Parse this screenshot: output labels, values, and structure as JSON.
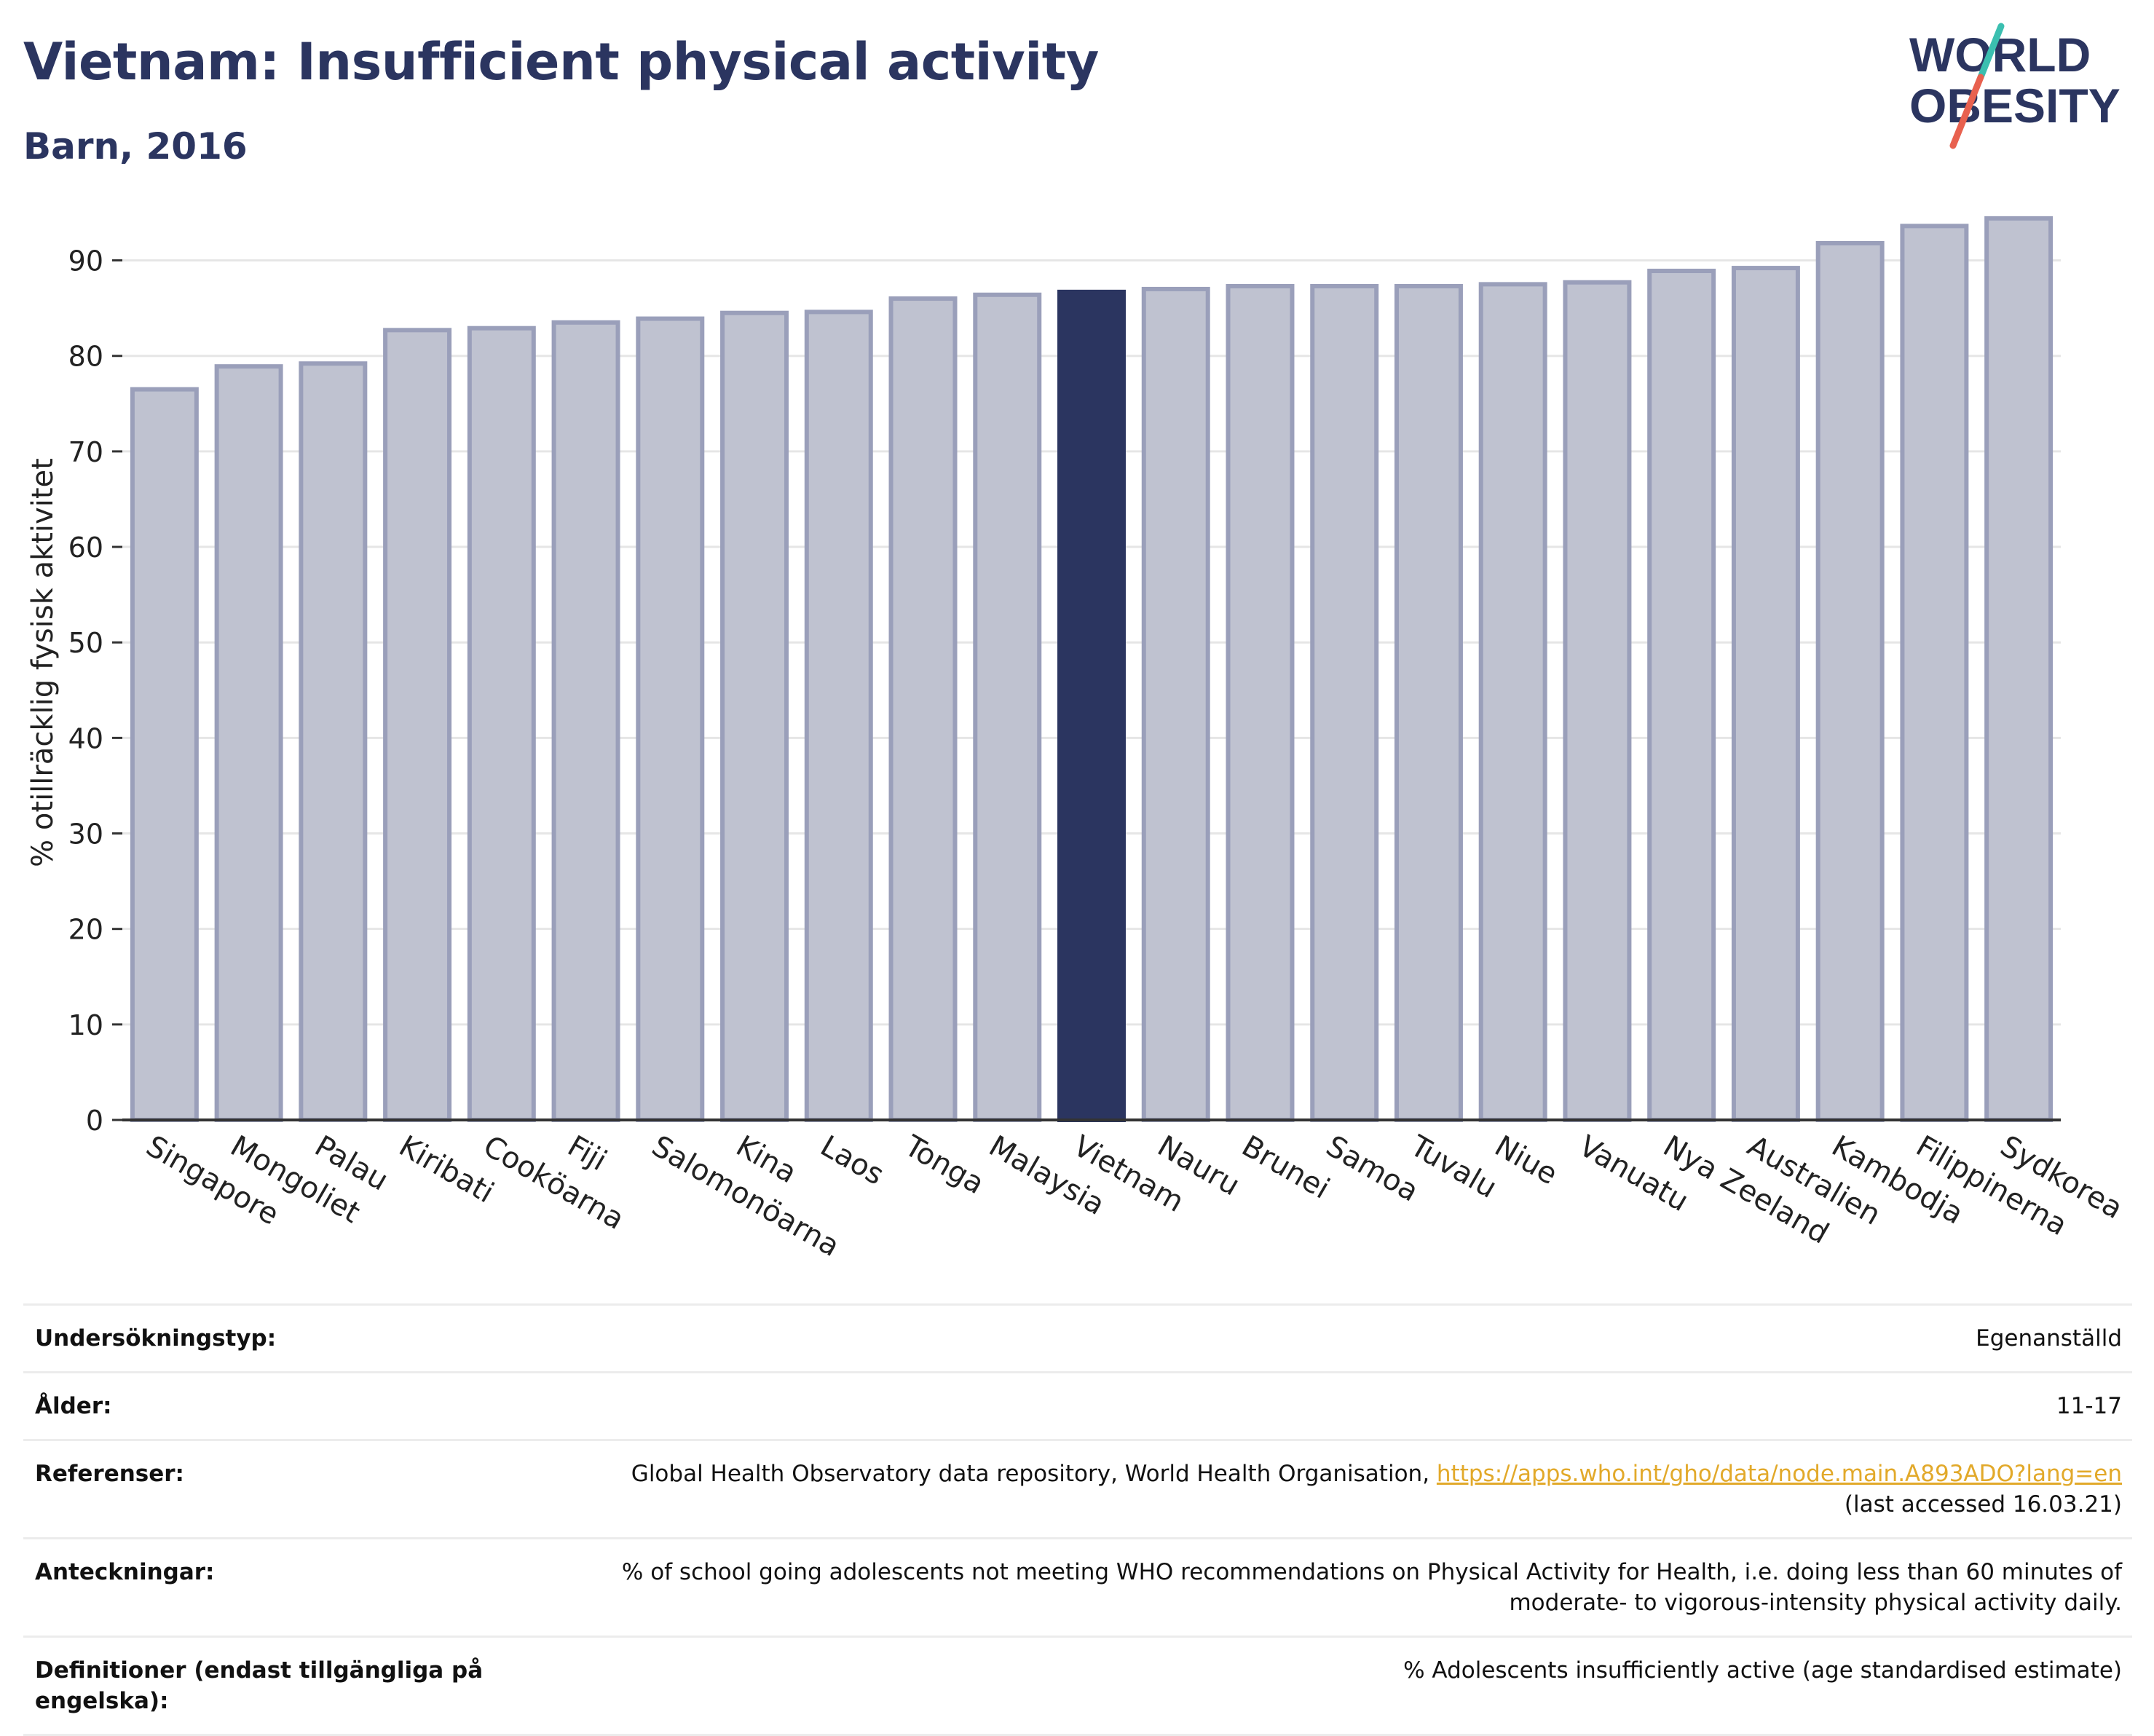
{
  "header": {
    "title": "Vietnam: Insufficient physical activity",
    "subtitle": "Barn, 2016"
  },
  "logo": {
    "line1": "WORLD",
    "line2": "OBESITY",
    "accent_colors": [
      "#3bbfb0",
      "#e8614f"
    ]
  },
  "chart_data": {
    "type": "bar",
    "title": "Vietnam: Insufficient physical activity",
    "subtitle": "Barn, 2016",
    "xlabel": "",
    "ylabel": "% otillräcklig fysisk aktivitet",
    "ylim": [
      0,
      95
    ],
    "yticks": [
      0,
      10,
      20,
      30,
      40,
      50,
      60,
      70,
      80,
      90
    ],
    "grid": true,
    "categories": [
      "Singapore",
      "Mongoliet",
      "Palau",
      "Kiribati",
      "Cookӧarna",
      "Fiji",
      "Salomonӧarna",
      "Kina",
      "Laos",
      "Tonga",
      "Malaysia",
      "Vietnam",
      "Nauru",
      "Brunei",
      "Samoa",
      "Tuvalu",
      "Niue",
      "Vanuatu",
      "Nya Zeeland",
      "Australien",
      "Kambodja",
      "Filippinerna",
      "Sydkorea"
    ],
    "values": [
      76.5,
      78.9,
      79.2,
      82.7,
      82.9,
      83.5,
      83.9,
      84.5,
      84.6,
      86.0,
      86.4,
      86.7,
      87.0,
      87.3,
      87.3,
      87.3,
      87.5,
      87.7,
      88.9,
      89.2,
      91.8,
      93.6,
      94.4
    ],
    "highlight": "Vietnam",
    "colors": {
      "bar": "#bfc2d0",
      "bar_edge": "#9a9fba",
      "highlight": "#2b3560",
      "grid": "#e6e6e6",
      "axis": "#333333"
    }
  },
  "info_table": [
    {
      "label": "Undersӧkningstyp:",
      "value": "Egenanställd"
    },
    {
      "label": "Ålder:",
      "value": "11-17"
    },
    {
      "label": "Referenser:",
      "value": "Global Health Observatory data repository, World Health Organisation, ",
      "link": "https://apps.who.int/gho/data/node.main.A893ADO?lang=en",
      "value_after": "(last accessed 16.03.21)"
    },
    {
      "label": "Anteckningar:",
      "value": "% of school going adolescents not meeting WHO recommendations on Physical Activity for Health, i.e. doing less than 60 minutes of moderate- to vigorous-intensity physical activity daily."
    },
    {
      "label": "Definitioner (endast tillgängliga på engelska):",
      "value": "% Adolescents insufficiently active (age standardised estimate)"
    }
  ]
}
